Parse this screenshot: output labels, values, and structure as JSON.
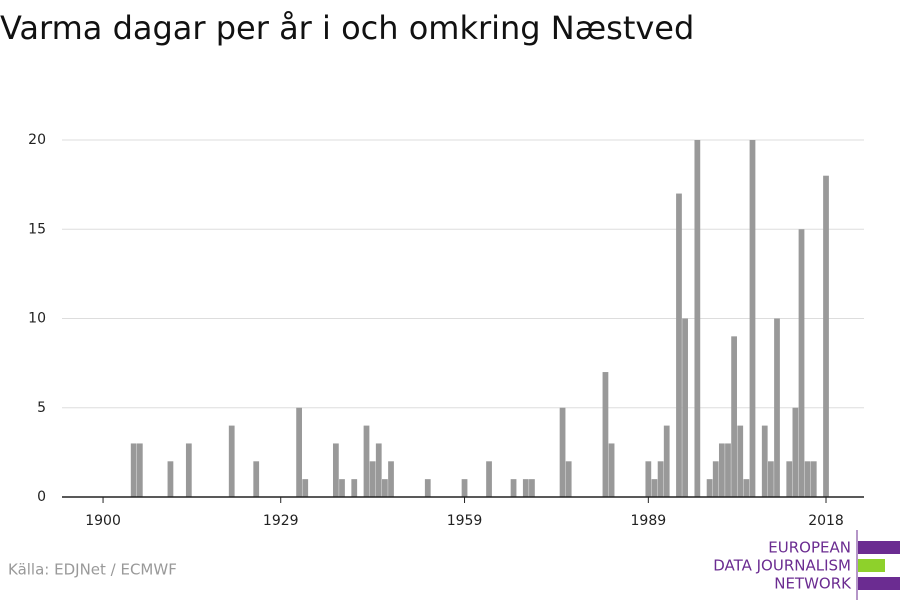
{
  "chart_data": {
    "type": "bar",
    "title": "Varma dagar per år i och omkring Næstved",
    "source": "Källa: EDJNet / ECMWF",
    "logo": [
      "EUROPEAN",
      "DATA JOURNALISM",
      "NETWORK"
    ],
    "x": [
      1905,
      1906,
      1911,
      1914,
      1921,
      1925,
      1932,
      1933,
      1938,
      1939,
      1941,
      1943,
      1944,
      1945,
      1946,
      1947,
      1953,
      1959,
      1963,
      1967,
      1969,
      1970,
      1975,
      1976,
      1982,
      1983,
      1989,
      1990,
      1991,
      1992,
      1994,
      1995,
      1997,
      1999,
      2000,
      2001,
      2002,
      2003,
      2004,
      2005,
      2006,
      2008,
      2009,
      2010,
      2012,
      2013,
      2014,
      2015,
      2016,
      2018
    ],
    "values": [
      3,
      3,
      2,
      3,
      4,
      2,
      5,
      1,
      3,
      1,
      1,
      4,
      2,
      3,
      1,
      2,
      1,
      1,
      2,
      1,
      1,
      1,
      5,
      2,
      7,
      3,
      2,
      1,
      2,
      4,
      17,
      10,
      20,
      1,
      2,
      3,
      3,
      9,
      4,
      1,
      20,
      4,
      2,
      10,
      2,
      5,
      15,
      2,
      2,
      18
    ],
    "color": "#999999",
    "xlim": [
      1893.3,
      2024.2
    ],
    "xticks": [
      1900,
      1929,
      1959,
      1989,
      2018
    ],
    "ylim": [
      0,
      20
    ],
    "yticks": [
      0,
      5,
      10,
      15,
      20
    ],
    "grid": true
  }
}
